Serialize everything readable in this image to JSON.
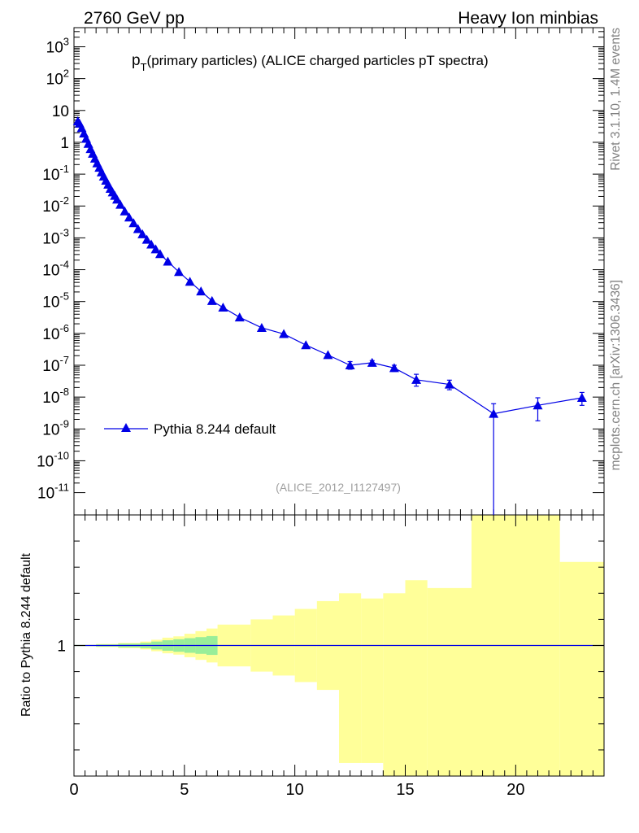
{
  "header": {
    "left": "2760 GeV pp",
    "right": "Heavy Ion minbias"
  },
  "side_labels": {
    "rivet": "Rivet 3.1.10,  1.4M events",
    "mcplots": "mcplots.cern.ch [arXiv:1306.3436]"
  },
  "chart_data": [
    {
      "type": "line",
      "title_main": "p",
      "title_sub": "T",
      "title_rest": "(primary particles) (ALICE charged particles pT spectra)",
      "xlim": [
        0,
        24
      ],
      "ylim_log10": [
        -11.7,
        3.6
      ],
      "log_y": true,
      "y_tick_labels": [
        "10^-11",
        "10^-10",
        "10^-9",
        "10^-8",
        "10^-7",
        "10^-6",
        "10^-5",
        "10^-4",
        "10^-3",
        "10^-2",
        "10^-1",
        "1",
        "10",
        "10^2",
        "10^3"
      ],
      "legend_position": "lower-left",
      "analysis_label": "(ALICE_2012_I1127497)",
      "series": [
        {
          "name": "Pythia 8.244 default",
          "color": "#0000e6",
          "marker": "triangle",
          "points": [
            {
              "x": 0.175,
              "y": 4.6
            },
            {
              "x": 0.25,
              "y": 3.9
            },
            {
              "x": 0.35,
              "y": 2.8
            },
            {
              "x": 0.45,
              "y": 1.9
            },
            {
              "x": 0.55,
              "y": 1.3
            },
            {
              "x": 0.65,
              "y": 0.9
            },
            {
              "x": 0.75,
              "y": 0.62
            },
            {
              "x": 0.85,
              "y": 0.44
            },
            {
              "x": 0.95,
              "y": 0.31
            },
            {
              "x": 1.05,
              "y": 0.22
            },
            {
              "x": 1.15,
              "y": 0.16
            },
            {
              "x": 1.25,
              "y": 0.115
            },
            {
              "x": 1.35,
              "y": 0.085
            },
            {
              "x": 1.45,
              "y": 0.063
            },
            {
              "x": 1.55,
              "y": 0.047
            },
            {
              "x": 1.65,
              "y": 0.035
            },
            {
              "x": 1.75,
              "y": 0.027
            },
            {
              "x": 1.85,
              "y": 0.021
            },
            {
              "x": 1.95,
              "y": 0.016
            },
            {
              "x": 2.1,
              "y": 0.011
            },
            {
              "x": 2.3,
              "y": 0.0068
            },
            {
              "x": 2.5,
              "y": 0.0044
            },
            {
              "x": 2.7,
              "y": 0.0029
            },
            {
              "x": 2.9,
              "y": 0.0019
            },
            {
              "x": 3.1,
              "y": 0.0013
            },
            {
              "x": 3.3,
              "y": 0.00088
            },
            {
              "x": 3.5,
              "y": 0.00062
            },
            {
              "x": 3.7,
              "y": 0.00044
            },
            {
              "x": 3.9,
              "y": 0.00031
            },
            {
              "x": 4.25,
              "y": 0.00018
            },
            {
              "x": 4.75,
              "y": 8.5e-05
            },
            {
              "x": 5.25,
              "y": 4.2e-05
            },
            {
              "x": 5.75,
              "y": 2.1e-05
            },
            {
              "x": 6.25,
              "y": 1.05e-05
            },
            {
              "x": 6.75,
              "y": 6.5e-06
            },
            {
              "x": 7.5,
              "y": 3.2e-06
            },
            {
              "x": 8.5,
              "y": 1.5e-06
            },
            {
              "x": 9.5,
              "y": 9.6e-07
            },
            {
              "x": 10.5,
              "y": 4.3e-07
            },
            {
              "x": 11.5,
              "y": 2.1e-07
            },
            {
              "x": 12.5,
              "y": 1e-07,
              "err_lo": 7.5e-08,
              "err_hi": 1.3e-07
            },
            {
              "x": 13.5,
              "y": 1.2e-07,
              "err_lo": 1e-07,
              "err_hi": 1.4e-07
            },
            {
              "x": 14.5,
              "y": 8.2e-08,
              "err_lo": 6.4e-08,
              "err_hi": 1e-07
            },
            {
              "x": 15.5,
              "y": 3.5e-08,
              "err_lo": 2.2e-08,
              "err_hi": 5.2e-08
            },
            {
              "x": 17.0,
              "y": 2.5e-08,
              "err_lo": 1.7e-08,
              "err_hi": 3.4e-08
            },
            {
              "x": 19.0,
              "y": 3e-09,
              "err_lo": 1e-13,
              "err_hi": 6.2e-09
            },
            {
              "x": 21.0,
              "y": 5.5e-09,
              "err_lo": 1.8e-09,
              "err_hi": 9.5e-09
            },
            {
              "x": 23.0,
              "y": 9.5e-09,
              "err_lo": 5.5e-09,
              "err_hi": 1.4e-08
            }
          ]
        }
      ]
    },
    {
      "type": "area",
      "xlabel": "",
      "ylabel": "Ratio to Pythia 8.244 default",
      "xlim": [
        0,
        24
      ],
      "ylim": [
        0.5,
        1.5
      ],
      "x_tick_labels": [
        "0",
        "5",
        "10",
        "15",
        "20"
      ],
      "y_tick_labels": [
        "1"
      ],
      "bands": [
        {
          "name": "yellow",
          "color": "#ffff99",
          "bins": [
            {
              "x0": 0,
              "x1": 1,
              "lo": 0.997,
              "hi": 1.003
            },
            {
              "x0": 1,
              "x1": 2,
              "lo": 0.994,
              "hi": 1.006
            },
            {
              "x0": 2,
              "x1": 3,
              "lo": 0.99,
              "hi": 1.01
            },
            {
              "x0": 3,
              "x1": 3.5,
              "lo": 0.985,
              "hi": 1.015
            },
            {
              "x0": 3.5,
              "x1": 4,
              "lo": 0.978,
              "hi": 1.022
            },
            {
              "x0": 4,
              "x1": 4.5,
              "lo": 0.97,
              "hi": 1.03
            },
            {
              "x0": 4.5,
              "x1": 5,
              "lo": 0.965,
              "hi": 1.035
            },
            {
              "x0": 5,
              "x1": 5.5,
              "lo": 0.955,
              "hi": 1.045
            },
            {
              "x0": 5.5,
              "x1": 6,
              "lo": 0.945,
              "hi": 1.055
            },
            {
              "x0": 6,
              "x1": 6.5,
              "lo": 0.935,
              "hi": 1.065
            },
            {
              "x0": 6.5,
              "x1": 8,
              "lo": 0.92,
              "hi": 1.08
            },
            {
              "x0": 8,
              "x1": 9,
              "lo": 0.9,
              "hi": 1.1
            },
            {
              "x0": 9,
              "x1": 10,
              "lo": 0.885,
              "hi": 1.115
            },
            {
              "x0": 10,
              "x1": 11,
              "lo": 0.86,
              "hi": 1.14
            },
            {
              "x0": 11,
              "x1": 12,
              "lo": 0.83,
              "hi": 1.17
            },
            {
              "x0": 12,
              "x1": 13,
              "lo": 0.55,
              "hi": 1.2
            },
            {
              "x0": 13,
              "x1": 14,
              "lo": 0.55,
              "hi": 1.18
            },
            {
              "x0": 14,
              "x1": 15,
              "lo": 0.5,
              "hi": 1.2
            },
            {
              "x0": 15,
              "x1": 16,
              "lo": 0.5,
              "hi": 1.25
            },
            {
              "x0": 16,
              "x1": 18,
              "lo": 0.5,
              "hi": 1.22
            },
            {
              "x0": 18,
              "x1": 22,
              "lo": 0.5,
              "hi": 1.5
            },
            {
              "x0": 22,
              "x1": 24,
              "lo": 0.5,
              "hi": 1.32
            }
          ]
        },
        {
          "name": "green",
          "color": "#99ee99",
          "bins": [
            {
              "x0": 0,
              "x1": 1,
              "lo": 0.998,
              "hi": 1.002
            },
            {
              "x0": 1,
              "x1": 2,
              "lo": 0.996,
              "hi": 1.004
            },
            {
              "x0": 2,
              "x1": 3,
              "lo": 0.993,
              "hi": 1.007
            },
            {
              "x0": 3,
              "x1": 3.5,
              "lo": 0.99,
              "hi": 1.01
            },
            {
              "x0": 3.5,
              "x1": 4,
              "lo": 0.985,
              "hi": 1.015
            },
            {
              "x0": 4,
              "x1": 4.5,
              "lo": 0.98,
              "hi": 1.02
            },
            {
              "x0": 4.5,
              "x1": 5,
              "lo": 0.976,
              "hi": 1.024
            },
            {
              "x0": 5,
              "x1": 5.5,
              "lo": 0.972,
              "hi": 1.028
            },
            {
              "x0": 5.5,
              "x1": 6,
              "lo": 0.968,
              "hi": 1.032
            },
            {
              "x0": 6,
              "x1": 6.5,
              "lo": 0.964,
              "hi": 1.036
            }
          ]
        }
      ],
      "reference_line": 1.0
    }
  ]
}
